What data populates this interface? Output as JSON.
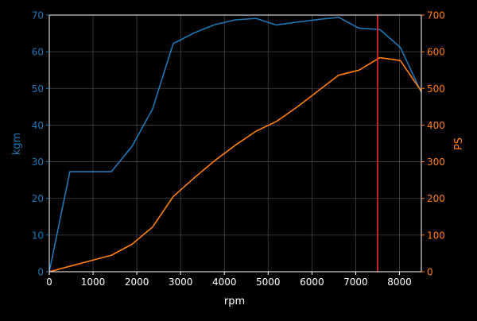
{
  "chart_data": {
    "type": "line",
    "xlabel": "rpm",
    "ylabel_left": "kgm",
    "ylabel_right": "PS",
    "xlim": [
      0,
      8500
    ],
    "ylim_left": [
      0,
      70
    ],
    "ylim_right": [
      0,
      700
    ],
    "x_ticks": [
      0,
      1000,
      2000,
      3000,
      4000,
      5000,
      6000,
      7000,
      8000
    ],
    "y_ticks_left": [
      0,
      10,
      20,
      30,
      40,
      50,
      60,
      70
    ],
    "y_ticks_right": [
      0,
      100,
      200,
      300,
      400,
      500,
      600,
      700
    ],
    "grid": true,
    "series": [
      {
        "axis": "left",
        "color": "#1f77b4",
        "x": [
          0,
          470,
          1420,
          1890,
          2360,
          2830,
          3300,
          3780,
          4250,
          4720,
          5190,
          5670,
          6140,
          6610,
          7080,
          7550,
          8020,
          8500
        ],
        "values": [
          0,
          27.3,
          27.3,
          34.2,
          44.4,
          62.2,
          65.1,
          67.4,
          68.7,
          69.1,
          67.3,
          68.1,
          68.8,
          69.4,
          66.4,
          66.1,
          61.2,
          48.9
        ]
      },
      {
        "axis": "right",
        "color": "#ff7f0e",
        "x": [
          0,
          470,
          1420,
          1890,
          2360,
          2830,
          3300,
          3780,
          4250,
          4720,
          5190,
          5670,
          6140,
          6610,
          7080,
          7550,
          8020,
          8500
        ],
        "values": [
          0,
          15,
          45,
          75,
          122,
          205,
          255,
          303,
          345,
          383,
          410,
          450,
          493,
          536,
          550,
          584,
          576,
          492
        ]
      }
    ],
    "vline": {
      "x": 7500,
      "color": "#d62728"
    },
    "colors": {
      "background": "#000000",
      "axes": "#ffffff",
      "grid": "#555555",
      "left_axis_text": "#1f77b4",
      "right_axis_text": "#ff7f0e",
      "x_axis_text": "#ffffff"
    }
  }
}
